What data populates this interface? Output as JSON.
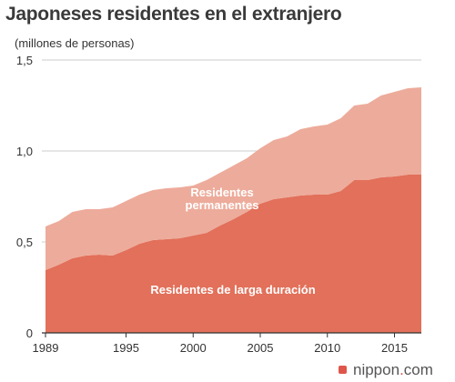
{
  "title": "Japoneses residentes en el extranjero",
  "brand": {
    "name": "nippon",
    "dot": ".",
    "tld": "com",
    "color": "#e0554a"
  },
  "colors": {
    "long_term": "#e2705a",
    "permanent": "#edab9b",
    "grid": "#cccccc",
    "axis": "#333333"
  },
  "chart_data": {
    "type": "area",
    "stacked": true,
    "ylabel": "(millones de personas)",
    "xlim": [
      1989,
      2017
    ],
    "ylim": [
      0,
      1.5
    ],
    "xticks": [
      1989,
      1995,
      2000,
      2005,
      2010,
      2015
    ],
    "yticks": [
      0,
      0.5,
      1.0,
      1.5
    ],
    "ytick_labels": [
      "0",
      "0,5",
      "1,0",
      "1,5"
    ],
    "grid": "horizontal",
    "x": [
      1989,
      1990,
      1991,
      1992,
      1993,
      1994,
      1995,
      1996,
      1997,
      1998,
      1999,
      2000,
      2001,
      2002,
      2003,
      2004,
      2005,
      2006,
      2007,
      2008,
      2009,
      2010,
      2011,
      2012,
      2013,
      2014,
      2015,
      2016,
      2017
    ],
    "series": [
      {
        "name": "Residentes de larga duración",
        "values": [
          0.345,
          0.375,
          0.41,
          0.425,
          0.43,
          0.425,
          0.455,
          0.49,
          0.51,
          0.515,
          0.52,
          0.535,
          0.55,
          0.59,
          0.625,
          0.665,
          0.71,
          0.735,
          0.745,
          0.755,
          0.76,
          0.76,
          0.78,
          0.84,
          0.84,
          0.855,
          0.86,
          0.87,
          0.87
        ]
      },
      {
        "name": "Residentes permanentes",
        "values": [
          0.24,
          0.24,
          0.255,
          0.255,
          0.25,
          0.265,
          0.27,
          0.27,
          0.275,
          0.28,
          0.28,
          0.275,
          0.29,
          0.29,
          0.295,
          0.295,
          0.305,
          0.325,
          0.335,
          0.365,
          0.375,
          0.385,
          0.4,
          0.41,
          0.42,
          0.45,
          0.465,
          0.475,
          0.48
        ]
      }
    ]
  }
}
